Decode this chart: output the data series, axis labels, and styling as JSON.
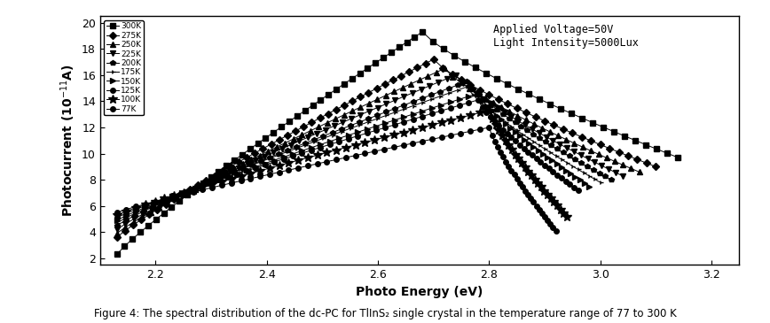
{
  "xlabel": "Photo Energy (eV)",
  "ylabel": "Photocurrent (10$^{-11}$A)",
  "xlim": [
    2.1,
    3.25
  ],
  "ylim": [
    1.5,
    20.5
  ],
  "xticks": [
    2.2,
    2.4,
    2.6,
    2.8,
    3.0,
    3.2
  ],
  "yticks": [
    2,
    4,
    6,
    8,
    10,
    12,
    14,
    16,
    18,
    20
  ],
  "annotation": "Applied Voltage=50V\nLight Intensity=5000Lux",
  "temperatures": [
    "300K",
    "275K",
    "250K",
    "225K",
    "200K",
    "175K",
    "150K",
    "125K",
    "100K",
    "77K"
  ],
  "markers": [
    "s",
    "D",
    "^",
    "v",
    "p",
    "4",
    ">",
    "o",
    "*",
    "o"
  ],
  "peak_x": [
    2.68,
    2.7,
    2.72,
    2.74,
    2.76,
    2.76,
    2.78,
    2.78,
    2.8,
    2.8
  ],
  "peak_y": [
    19.3,
    17.2,
    16.5,
    16.0,
    15.5,
    15.1,
    14.6,
    14.1,
    13.3,
    12.0
  ],
  "start_x": 2.13,
  "start_y_values": [
    2.3,
    3.6,
    3.9,
    4.2,
    4.5,
    4.7,
    4.9,
    5.1,
    5.3,
    5.5
  ],
  "end_x_values": [
    3.14,
    3.1,
    3.07,
    3.04,
    3.02,
    3.0,
    2.98,
    2.96,
    2.94,
    2.92
  ],
  "end_y_values": [
    9.7,
    9.0,
    8.6,
    8.3,
    8.0,
    7.8,
    7.5,
    7.2,
    5.2,
    4.1
  ],
  "n_rise": 40,
  "n_fall": 25,
  "markersize": 4,
  "star_markersize": 7,
  "linewidth": 0.7,
  "color": "black",
  "background": "white",
  "legend_fontsize": 6.5,
  "axis_fontsize": 10,
  "tick_fontsize": 9,
  "caption": "Figure 4: The spectral distribution of the dc-PC for TlInS₂ single crystal in the temperature range of 77 to 300 K"
}
